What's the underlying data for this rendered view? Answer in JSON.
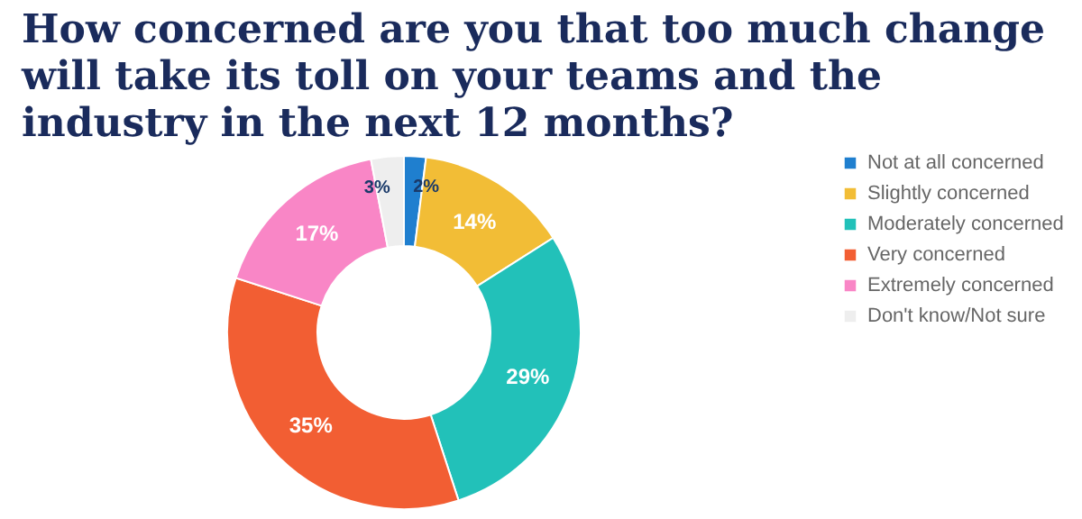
{
  "chart_data": {
    "type": "donut",
    "title": "How concerned are you that too much change will take its toll on your teams and the industry in the next 12 months?",
    "categories": [
      "Not at all concerned",
      "Slightly concerned",
      "Moderately concerned",
      "Very concerned",
      "Extremely concerned",
      "Don't know/Not sure"
    ],
    "values": [
      2,
      14,
      29,
      35,
      17,
      3
    ],
    "colors": [
      "#1f7fcf",
      "#f2bd36",
      "#22c1b9",
      "#f25e33",
      "#f986c6",
      "#eeeeee"
    ],
    "value_labels": [
      "2%",
      "14%",
      "29%",
      "35%",
      "17%",
      "3%"
    ],
    "legend": "right"
  }
}
